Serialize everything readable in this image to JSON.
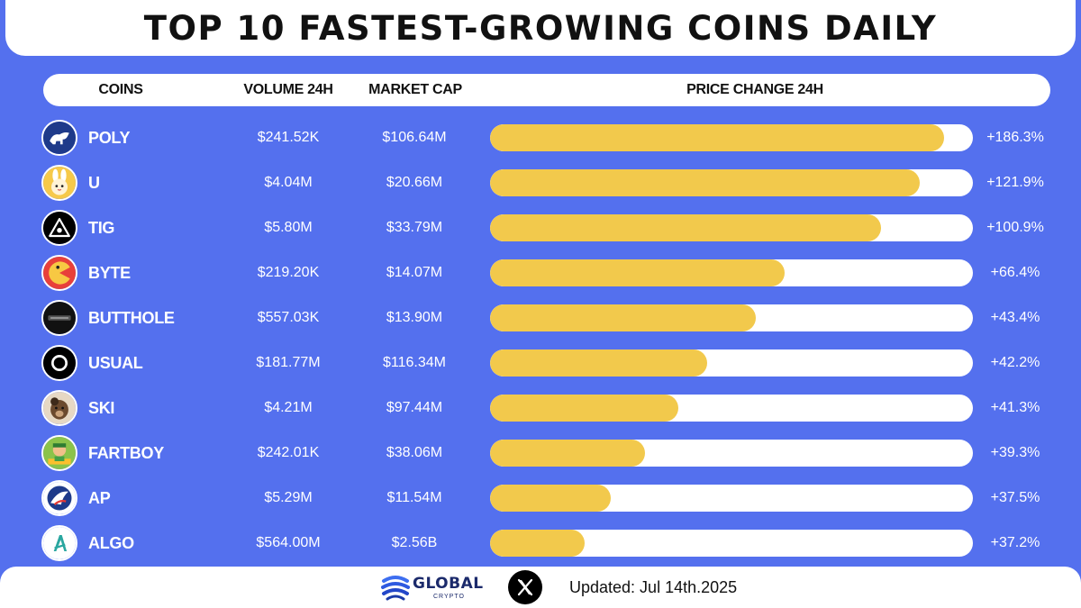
{
  "title": "TOP 10 FASTEST-GROWING COINS DAILY",
  "headers": {
    "coins": "COINS",
    "volume": "VOLUME 24H",
    "market_cap": "MARKET CAP",
    "price_change": "PRICE CHANGE 24H"
  },
  "colors": {
    "background": "#5470ee",
    "bar_fill": "#f2c94c",
    "bar_track": "#ffffff"
  },
  "chart_data": {
    "type": "bar",
    "categories": [
      "POLY",
      "U",
      "TIG",
      "BYTE",
      "BUTTHOLE",
      "USUAL",
      "SKI",
      "FARTBOY",
      "AP",
      "ALGO"
    ],
    "series": [
      {
        "name": "PRICE CHANGE 24H",
        "values": [
          186.3,
          121.9,
          100.9,
          66.4,
          43.4,
          42.2,
          41.3,
          39.3,
          37.5,
          37.2
        ]
      }
    ],
    "bar_fill_fraction": [
      0.94,
      0.89,
      0.81,
      0.61,
      0.55,
      0.45,
      0.39,
      0.32,
      0.25,
      0.195
    ]
  },
  "rows": [
    {
      "symbol": "POLY",
      "volume": "$241.52K",
      "market_cap": "$106.64M",
      "change": "+186.3%",
      "icon": "poly-bull-icon"
    },
    {
      "symbol": "U",
      "volume": "$4.04M",
      "market_cap": "$20.66M",
      "change": "+121.9%",
      "icon": "bunny-icon"
    },
    {
      "symbol": "TIG",
      "volume": "$5.80M",
      "market_cap": "$33.79M",
      "change": "+100.9%",
      "icon": "tig-triangle-icon"
    },
    {
      "symbol": "BYTE",
      "volume": "$219.20K",
      "market_cap": "$14.07M",
      "change": "+66.4%",
      "icon": "byte-pacman-icon"
    },
    {
      "symbol": "BUTTHOLE",
      "volume": "$557.03K",
      "market_cap": "$13.90M",
      "change": "+43.4%",
      "icon": "butthole-logo-icon"
    },
    {
      "symbol": "USUAL",
      "volume": "$181.77M",
      "market_cap": "$116.34M",
      "change": "+42.2%",
      "icon": "usual-ring-icon"
    },
    {
      "symbol": "SKI",
      "volume": "$4.21M",
      "market_cap": "$97.44M",
      "change": "+41.3%",
      "icon": "ski-dog-icon"
    },
    {
      "symbol": "FARTBOY",
      "volume": "$242.01K",
      "market_cap": "$38.06M",
      "change": "+39.3%",
      "icon": "fartboy-icon"
    },
    {
      "symbol": "AP",
      "volume": "$5.29M",
      "market_cap": "$11.54M",
      "change": "+37.5%",
      "icon": "ap-eagle-icon"
    },
    {
      "symbol": "ALGO",
      "volume": "$564.00M",
      "market_cap": "$2.56B",
      "change": "+37.2%",
      "icon": "algo-icon"
    }
  ],
  "footer": {
    "brand": "GLOBAL",
    "brand_sub": "CRYPTO",
    "updated": "Updated: Jul 14th.2025",
    "social_icon": "x-icon"
  }
}
